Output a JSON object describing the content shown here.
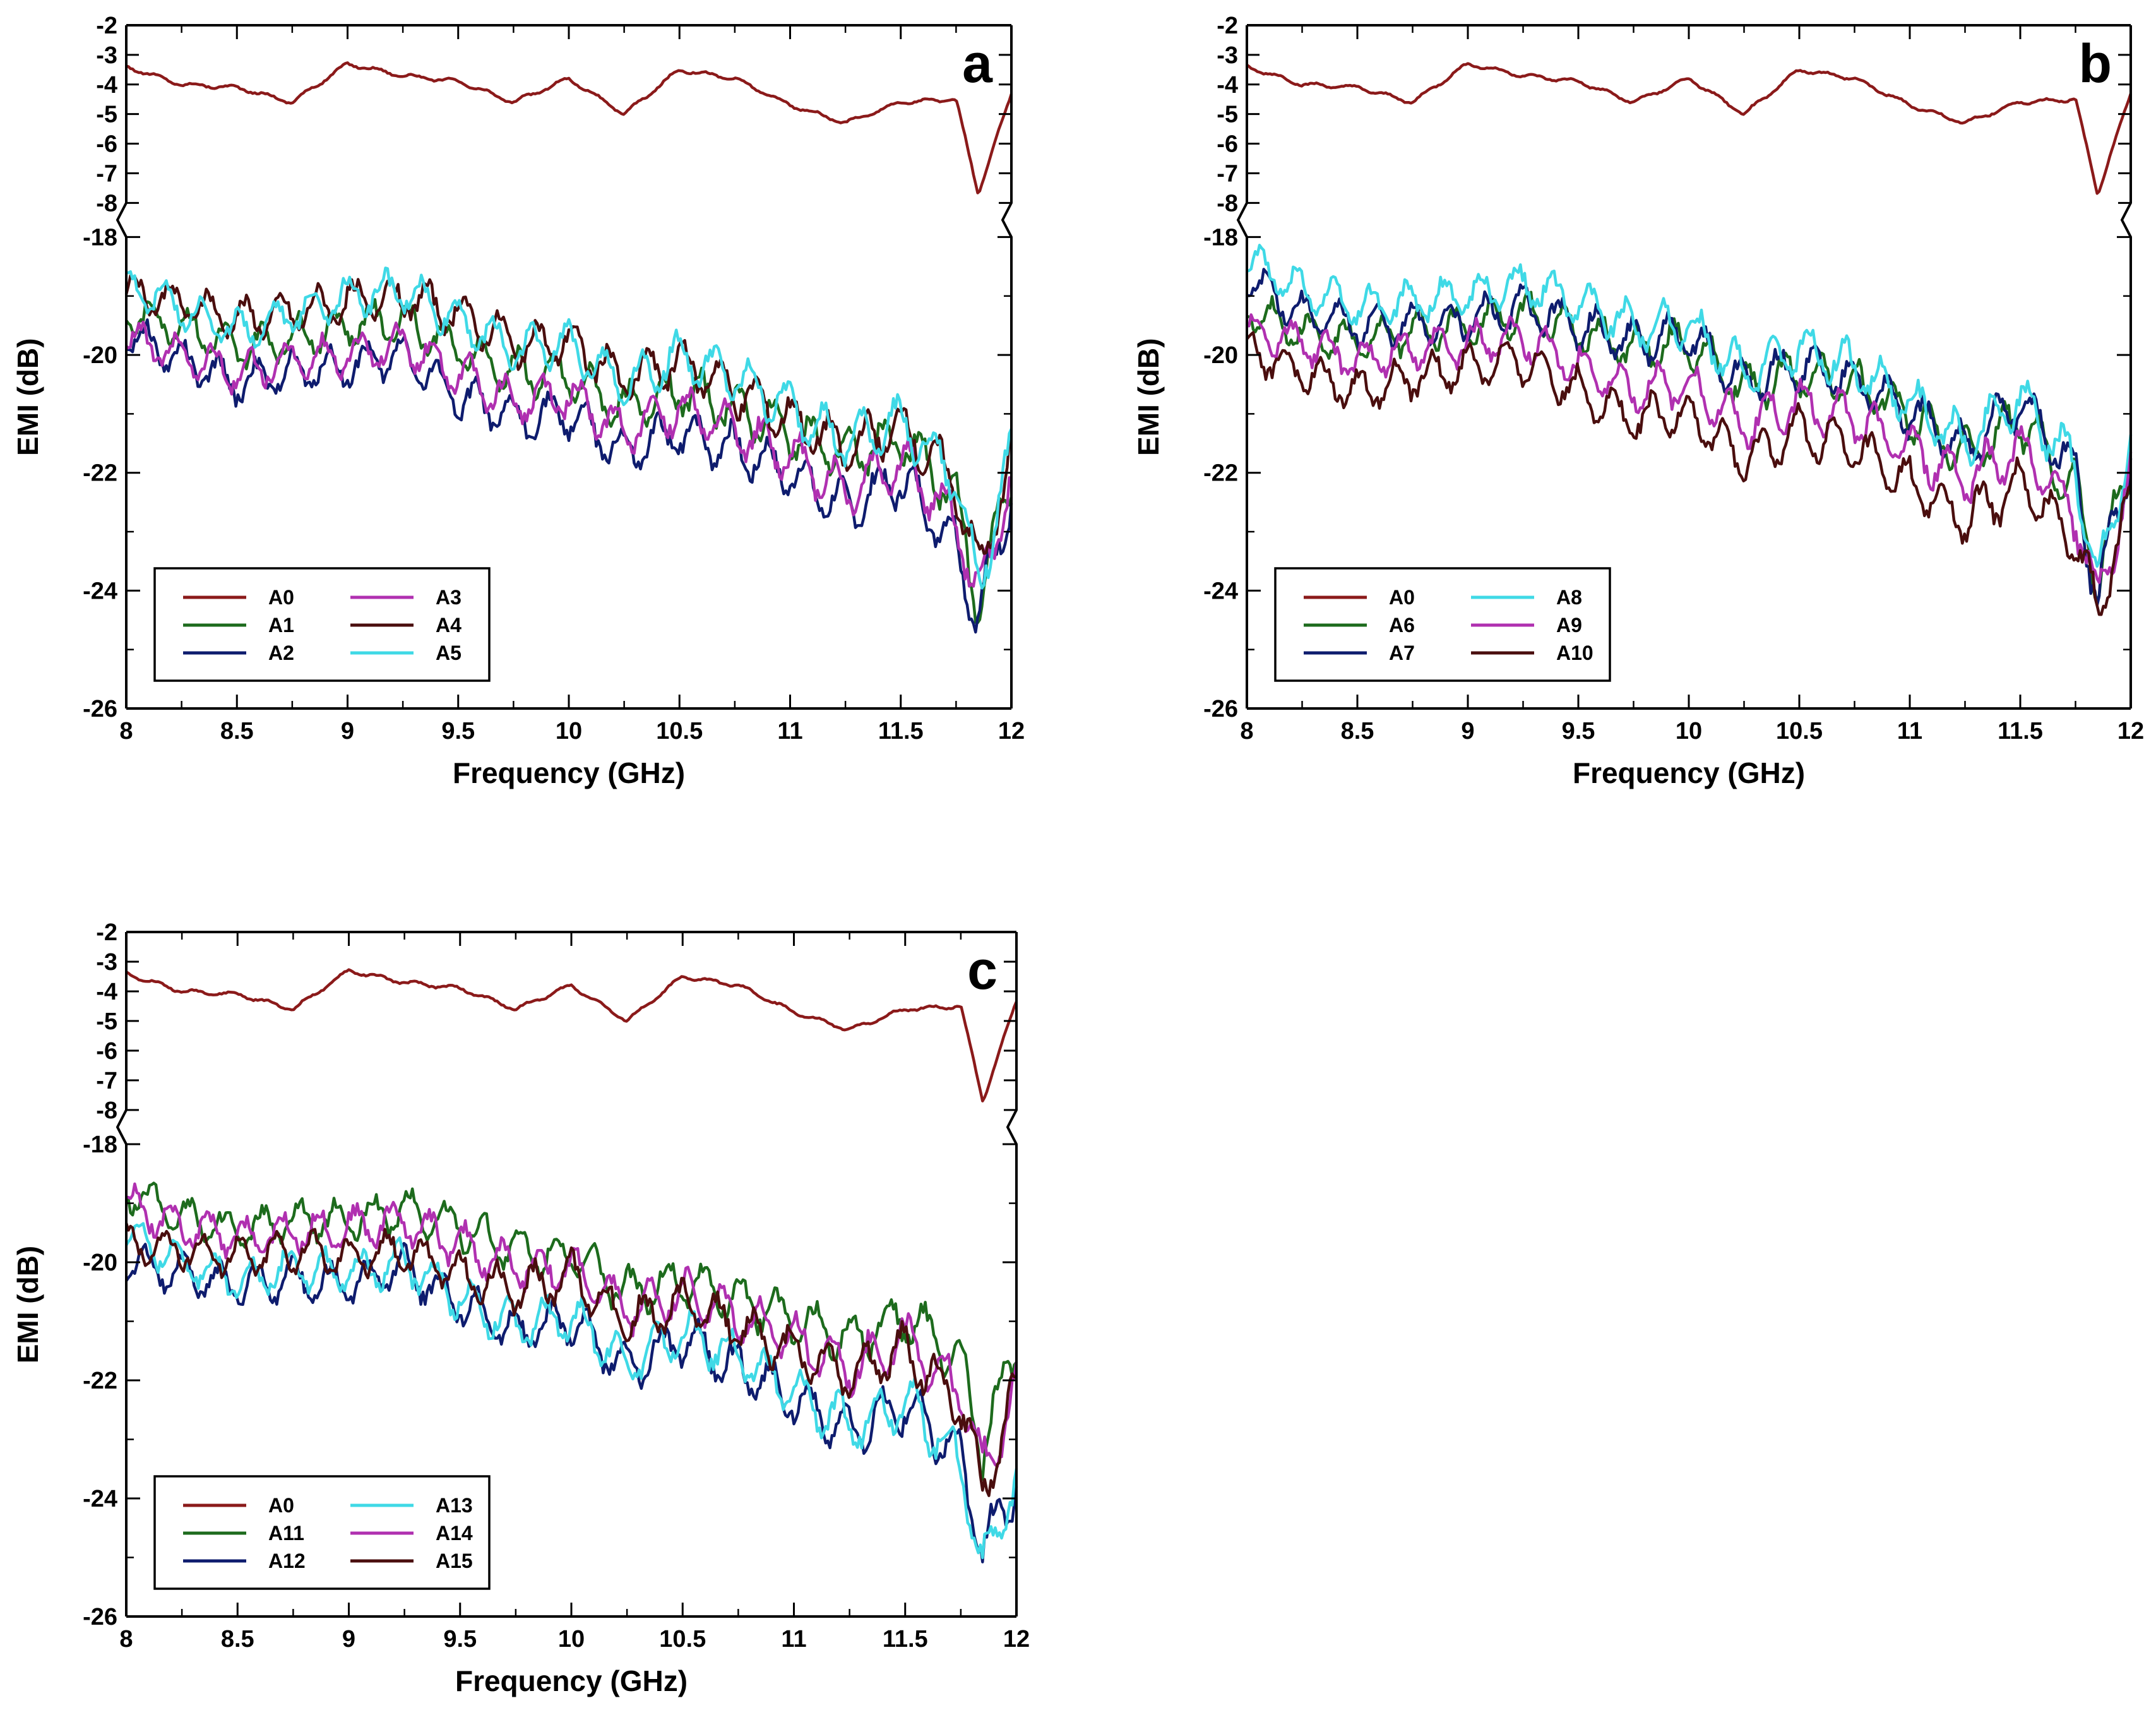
{
  "chart_data": [
    {
      "type": "line",
      "panel_label": "a",
      "xlabel": "Frequency (GHz)",
      "ylabel": "EMI (dB)",
      "xlim": [
        8,
        12
      ],
      "xticks": [
        8,
        8.5,
        9,
        9.5,
        10,
        10.5,
        11,
        11.5,
        12
      ],
      "xtick_labels": [
        "8",
        "8.5",
        "9",
        "9.5",
        "10",
        "10.5",
        "11",
        "11.5",
        "12"
      ],
      "y_axis_broken": true,
      "ylim_upper": [
        -8,
        -2
      ],
      "ylim_lower": [
        -26,
        -18
      ],
      "yticks_upper": [
        "-2",
        "-3",
        "-4",
        "-5",
        "-6",
        "-7",
        "-8"
      ],
      "yticks_lower": [
        "-18",
        "-20",
        "-22",
        "-24",
        "-26"
      ],
      "legend_position": "bottom-left",
      "x": [
        8.0,
        8.25,
        8.5,
        8.75,
        9.0,
        9.25,
        9.5,
        9.75,
        10.0,
        10.25,
        10.5,
        10.75,
        11.0,
        11.25,
        11.5,
        11.75,
        11.85,
        12.0
      ],
      "series": [
        {
          "name": "A0",
          "color": "#8b1a1a",
          "values": [
            -3.4,
            -4.0,
            -4.1,
            -4.6,
            -3.3,
            -3.7,
            -3.9,
            -4.6,
            -3.8,
            -5.0,
            -3.5,
            -3.8,
            -4.7,
            -5.3,
            -4.6,
            -4.5,
            -7.7,
            -4.3
          ]
        },
        {
          "name": "A1",
          "color": "#1d6b1d",
          "values": [
            -19.3,
            -19.5,
            -19.9,
            -19.7,
            -19.5,
            -19.4,
            -19.9,
            -20.3,
            -20.4,
            -20.9,
            -20.6,
            -20.9,
            -21.3,
            -21.7,
            -21.4,
            -22.4,
            -24.3,
            -21.9
          ]
        },
        {
          "name": "A2",
          "color": "#0e1c6e",
          "values": [
            -19.6,
            -20.1,
            -20.5,
            -20.3,
            -20.2,
            -20.0,
            -20.7,
            -21.1,
            -21.0,
            -21.7,
            -21.3,
            -21.6,
            -22.0,
            -22.6,
            -22.1,
            -23.2,
            -24.5,
            -22.3
          ]
        },
        {
          "name": "A3",
          "color": "#b030b0",
          "values": [
            -19.7,
            -20.0,
            -20.3,
            -20.1,
            -20.0,
            -19.8,
            -20.3,
            -20.8,
            -20.7,
            -21.3,
            -20.9,
            -21.3,
            -21.7,
            -22.3,
            -21.8,
            -22.8,
            -24.1,
            -22.1
          ]
        },
        {
          "name": "A4",
          "color": "#4a0e0e",
          "values": [
            -18.9,
            -19.1,
            -19.4,
            -19.3,
            -19.1,
            -19.0,
            -19.3,
            -19.8,
            -19.8,
            -20.4,
            -20.1,
            -20.6,
            -21.1,
            -21.6,
            -21.2,
            -22.2,
            -23.7,
            -21.8
          ]
        },
        {
          "name": "A5",
          "color": "#3fd9e6",
          "values": [
            -18.8,
            -19.2,
            -19.6,
            -19.3,
            -19.0,
            -18.9,
            -19.4,
            -19.9,
            -19.8,
            -20.5,
            -20.0,
            -20.4,
            -20.9,
            -21.5,
            -21.1,
            -22.1,
            -23.9,
            -21.7
          ]
        }
      ]
    },
    {
      "type": "line",
      "panel_label": "b",
      "xlabel": "Frequency (GHz)",
      "ylabel": "EMI (dB)",
      "xlim": [
        8,
        12
      ],
      "xticks": [
        8,
        8.5,
        9,
        9.5,
        10,
        10.5,
        11,
        11.5,
        12
      ],
      "xtick_labels": [
        "8",
        "8.5",
        "9",
        "9.5",
        "10",
        "10.5",
        "11",
        "11.5",
        "12"
      ],
      "y_axis_broken": true,
      "ylim_upper": [
        -8,
        -2
      ],
      "ylim_lower": [
        -26,
        -18
      ],
      "yticks_upper": [
        "-2",
        "-3",
        "-4",
        "-5",
        "-6",
        "-7",
        "-8"
      ],
      "yticks_lower": [
        "-18",
        "-20",
        "-22",
        "-24",
        "-26"
      ],
      "legend_position": "bottom-left",
      "x": [
        8.0,
        8.25,
        8.5,
        8.75,
        9.0,
        9.25,
        9.5,
        9.75,
        10.0,
        10.25,
        10.5,
        10.75,
        11.0,
        11.25,
        11.5,
        11.75,
        11.85,
        12.0
      ],
      "series": [
        {
          "name": "A0",
          "color": "#8b1a1a",
          "values": [
            -3.4,
            -4.0,
            -4.1,
            -4.6,
            -3.3,
            -3.7,
            -3.9,
            -4.6,
            -3.8,
            -5.0,
            -3.5,
            -3.8,
            -4.7,
            -5.3,
            -4.6,
            -4.5,
            -7.7,
            -4.3
          ]
        },
        {
          "name": "A6",
          "color": "#1d6b1d",
          "values": [
            -19.2,
            -19.6,
            -19.8,
            -19.6,
            -19.5,
            -19.3,
            -19.6,
            -19.9,
            -19.8,
            -20.6,
            -20.3,
            -20.5,
            -21.0,
            -21.7,
            -21.1,
            -22.3,
            -23.8,
            -21.8
          ]
        },
        {
          "name": "A7",
          "color": "#0e1c6e",
          "values": [
            -18.7,
            -19.3,
            -19.5,
            -19.5,
            -19.4,
            -19.2,
            -19.5,
            -19.8,
            -19.7,
            -20.5,
            -20.2,
            -20.4,
            -21.0,
            -21.6,
            -20.8,
            -22.0,
            -24.2,
            -21.6
          ]
        },
        {
          "name": "A8",
          "color": "#3fd9e6",
          "values": [
            -18.4,
            -18.9,
            -19.2,
            -19.1,
            -19.0,
            -18.8,
            -19.1,
            -19.5,
            -19.5,
            -20.3,
            -19.9,
            -20.2,
            -20.8,
            -21.5,
            -20.7,
            -21.9,
            -23.9,
            -21.4
          ]
        },
        {
          "name": "A9",
          "color": "#b030b0",
          "values": [
            -19.6,
            -19.8,
            -20.1,
            -19.9,
            -19.8,
            -19.7,
            -20.2,
            -20.6,
            -20.5,
            -21.2,
            -20.8,
            -21.1,
            -21.6,
            -22.1,
            -21.6,
            -22.7,
            -24.2,
            -22.1
          ]
        },
        {
          "name": "A10",
          "color": "#4a0e0e",
          "values": [
            -19.9,
            -20.3,
            -20.6,
            -20.4,
            -20.2,
            -20.1,
            -20.6,
            -21.1,
            -21.0,
            -21.8,
            -21.3,
            -21.6,
            -22.2,
            -22.8,
            -22.2,
            -23.1,
            -24.4,
            -22.4
          ]
        }
      ]
    },
    {
      "type": "line",
      "panel_label": "c",
      "xlabel": "Frequency (GHz)",
      "ylabel": "EMI (dB)",
      "xlim": [
        8,
        12
      ],
      "xticks": [
        8,
        8.5,
        9,
        9.5,
        10,
        10.5,
        11,
        11.5,
        12
      ],
      "xtick_labels": [
        "8",
        "8.5",
        "9",
        "9.5",
        "10",
        "10.5",
        "11",
        "11.5",
        "12"
      ],
      "y_axis_broken": true,
      "ylim_upper": [
        -8,
        -2
      ],
      "ylim_lower": [
        -26,
        -18
      ],
      "yticks_upper": [
        "-2",
        "-3",
        "-4",
        "-5",
        "-6",
        "-7",
        "-8"
      ],
      "yticks_lower": [
        "-18",
        "-20",
        "-22",
        "-24",
        "-26"
      ],
      "legend_position": "bottom-left",
      "x": [
        8.0,
        8.25,
        8.5,
        8.75,
        9.0,
        9.25,
        9.5,
        9.75,
        10.0,
        10.25,
        10.5,
        10.75,
        11.0,
        11.25,
        11.5,
        11.75,
        11.85,
        12.0
      ],
      "series": [
        {
          "name": "A0",
          "color": "#8b1a1a",
          "values": [
            -3.4,
            -4.0,
            -4.1,
            -4.6,
            -3.3,
            -3.7,
            -3.9,
            -4.6,
            -3.8,
            -5.0,
            -3.5,
            -3.8,
            -4.7,
            -5.3,
            -4.6,
            -4.5,
            -7.7,
            -4.3
          ]
        },
        {
          "name": "A11",
          "color": "#1d6b1d",
          "values": [
            -18.8,
            -19.2,
            -19.5,
            -19.3,
            -19.3,
            -19.1,
            -19.4,
            -19.8,
            -19.9,
            -20.5,
            -20.3,
            -20.6,
            -21.0,
            -21.3,
            -20.9,
            -21.7,
            -23.2,
            -21.3
          ]
        },
        {
          "name": "A12",
          "color": "#0e1c6e",
          "values": [
            -20.0,
            -20.2,
            -20.4,
            -20.3,
            -20.4,
            -20.1,
            -20.7,
            -21.2,
            -21.0,
            -21.8,
            -21.3,
            -21.8,
            -22.3,
            -22.9,
            -22.4,
            -23.3,
            -24.9,
            -23.7
          ]
        },
        {
          "name": "A13",
          "color": "#3fd9e6",
          "values": [
            -19.5,
            -20.0,
            -20.3,
            -20.1,
            -20.2,
            -20.0,
            -20.6,
            -21.1,
            -20.9,
            -21.7,
            -21.2,
            -21.6,
            -22.2,
            -22.8,
            -22.3,
            -23.4,
            -25.2,
            -23.6
          ]
        },
        {
          "name": "A14",
          "color": "#b030b0",
          "values": [
            -19.0,
            -19.4,
            -19.6,
            -19.5,
            -19.4,
            -19.3,
            -19.7,
            -20.1,
            -20.1,
            -20.8,
            -20.5,
            -20.9,
            -21.3,
            -21.8,
            -21.3,
            -22.2,
            -23.5,
            -22.2
          ]
        },
        {
          "name": "A15",
          "color": "#4a0e0e",
          "values": [
            -19.7,
            -19.8,
            -19.9,
            -19.8,
            -19.9,
            -19.8,
            -20.2,
            -20.5,
            -20.2,
            -21.0,
            -20.7,
            -21.1,
            -21.5,
            -21.9,
            -21.5,
            -22.4,
            -23.9,
            -22.2
          ]
        }
      ]
    }
  ]
}
